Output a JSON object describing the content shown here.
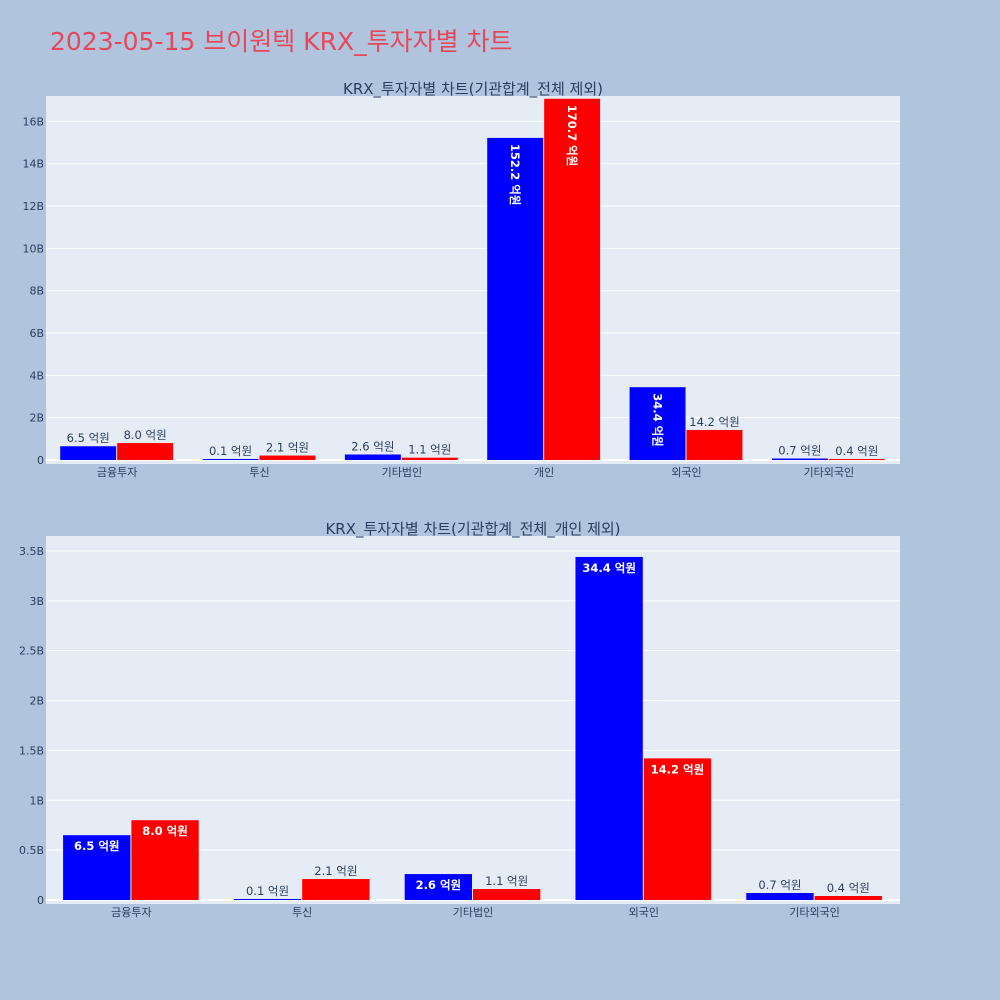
{
  "page": {
    "title": "2023-05-15 브이원텍 KRX_투자자별 차트",
    "background": "#b0c4de",
    "title_color": "#e8475b"
  },
  "colors": {
    "plot_bg": "#e5ecf6",
    "grid": "#ffffff",
    "tick": "#2a3f5f",
    "series_a": "#0000ff",
    "series_b": "#ff0000"
  },
  "chart_data": [
    {
      "type": "bar",
      "title": "KRX_투자자별 차트(기관합계_전체 제외)",
      "categories": [
        "금융투자",
        "투신",
        "기타법인",
        "개인",
        "외국인",
        "기타외국인"
      ],
      "series": [
        {
          "values": [
            0.65,
            0.01,
            0.26,
            15.22,
            3.44,
            0.07
          ],
          "labels": [
            "6.5 억원",
            "0.1 억원",
            "2.6 억원",
            "152.2 억원",
            "34.4 억원",
            "0.7 억원"
          ],
          "color": "#0000ff"
        },
        {
          "values": [
            0.8,
            0.21,
            0.11,
            17.07,
            1.42,
            0.04
          ],
          "labels": [
            "8.0 억원",
            "2.1 억원",
            "1.1 억원",
            "170.7 억원",
            "14.2 억원",
            "0.4 억원"
          ],
          "color": "#ff0000"
        }
      ],
      "yticks": [
        0,
        2,
        4,
        6,
        8,
        10,
        12,
        14,
        16
      ],
      "ytick_labels": [
        "0",
        "2B",
        "4B",
        "6B",
        "8B",
        "10B",
        "12B",
        "14B",
        "16B"
      ],
      "ylim": [
        0,
        17.2
      ],
      "grid": true
    },
    {
      "type": "bar",
      "title": "KRX_투자자별 차트(기관합계_전체_개인 제외)",
      "categories": [
        "금융투자",
        "투신",
        "기타법인",
        "외국인",
        "기타외국인"
      ],
      "series": [
        {
          "values": [
            0.65,
            0.01,
            0.26,
            3.44,
            0.07
          ],
          "labels": [
            "6.5 억원",
            "0.1 억원",
            "2.6 억원",
            "34.4 억원",
            "0.7 억원"
          ],
          "color": "#0000ff"
        },
        {
          "values": [
            0.8,
            0.21,
            0.11,
            1.42,
            0.04
          ],
          "labels": [
            "8.0 억원",
            "2.1 억원",
            "1.1 억원",
            "14.2 억원",
            "0.4 억원"
          ],
          "color": "#ff0000"
        }
      ],
      "yticks": [
        0,
        0.5,
        1,
        1.5,
        2,
        2.5,
        3,
        3.5
      ],
      "ytick_labels": [
        "0",
        "0.5B",
        "1B",
        "1.5B",
        "2B",
        "2.5B",
        "3B",
        "3.5B"
      ],
      "ylim": [
        0,
        3.65
      ],
      "grid": true
    }
  ]
}
